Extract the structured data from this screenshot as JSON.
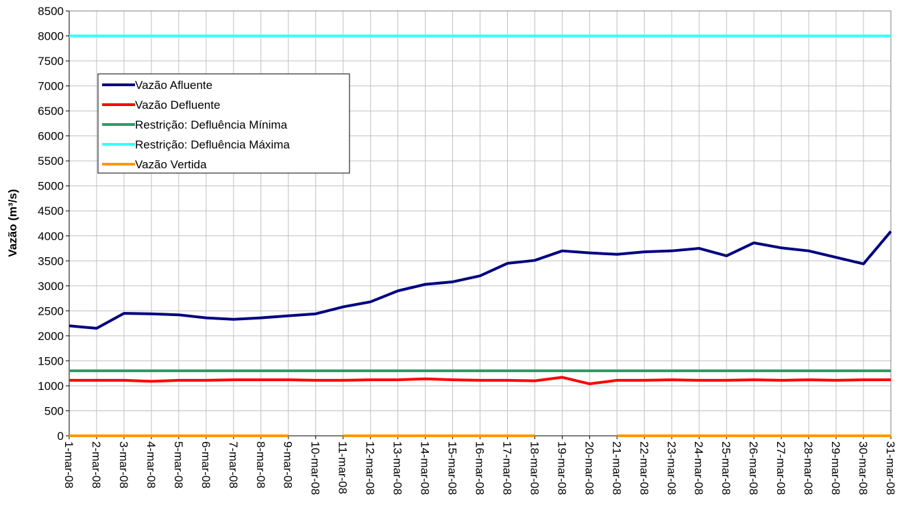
{
  "chart_data": {
    "type": "line",
    "y_label": "Vazão (m³/s)",
    "categories": [
      "1-mar-08",
      "2-mar-08",
      "3-mar-08",
      "4-mar-08",
      "5-mar-08",
      "6-mar-08",
      "7-mar-08",
      "8-mar-08",
      "9-mar-08",
      "10-mar-08",
      "11-mar-08",
      "12-mar-08",
      "13-mar-08",
      "14-mar-08",
      "15-mar-08",
      "16-mar-08",
      "17-mar-08",
      "18-mar-08",
      "19-mar-08",
      "20-mar-08",
      "21-mar-08",
      "22-mar-08",
      "23-mar-08",
      "24-mar-08",
      "25-mar-08",
      "26-mar-08",
      "27-mar-08",
      "28-mar-08",
      "29-mar-08",
      "30-mar-08",
      "31-mar-08"
    ],
    "series": [
      {
        "name": "Vazão Afluente",
        "color": "#000080",
        "values": [
          2200,
          2150,
          2450,
          2440,
          2420,
          2360,
          2330,
          2360,
          2400,
          2440,
          2580,
          2680,
          2900,
          3030,
          3080,
          3200,
          3450,
          3510,
          3700,
          3660,
          3630,
          3680,
          3700,
          3750,
          3600,
          3860,
          3760,
          3700,
          3570,
          3440,
          4090
        ]
      },
      {
        "name": "Vazão Defluente",
        "color": "#ff0000",
        "values": [
          1110,
          1110,
          1110,
          1090,
          1110,
          1110,
          1120,
          1120,
          1120,
          1110,
          1110,
          1120,
          1120,
          1140,
          1120,
          1110,
          1110,
          1100,
          1170,
          1040,
          1110,
          1110,
          1120,
          1110,
          1110,
          1120,
          1110,
          1120,
          1110,
          1120,
          1120
        ]
      },
      {
        "name": "Restrição: Defluência Mínima",
        "color": "#339966",
        "values": [
          1300,
          1300,
          1300,
          1300,
          1300,
          1300,
          1300,
          1300,
          1300,
          1300,
          1300,
          1300,
          1300,
          1300,
          1300,
          1300,
          1300,
          1300,
          1300,
          1300,
          1300,
          1300,
          1300,
          1300,
          1300,
          1300,
          1300,
          1300,
          1300,
          1300,
          1300
        ]
      },
      {
        "name": "Restrição: Defluência Máxima",
        "color": "#33ffff",
        "values": [
          8000,
          8000,
          8000,
          8000,
          8000,
          8000,
          8000,
          8000,
          8000,
          8000,
          8000,
          8000,
          8000,
          8000,
          8000,
          8000,
          8000,
          8000,
          8000,
          8000,
          8000,
          8000,
          8000,
          8000,
          8000,
          8000,
          8000,
          8000,
          8000,
          8000,
          8000
        ]
      },
      {
        "name": "Vazão Vertida",
        "color": "#ff9900",
        "values": [
          0,
          0,
          0,
          0,
          0,
          0,
          0,
          0,
          0,
          null,
          0,
          0,
          0,
          0,
          0,
          0,
          0,
          0,
          null,
          null,
          0,
          0,
          0,
          0,
          0,
          0,
          0,
          0,
          0,
          0,
          0
        ]
      }
    ],
    "ylim": [
      0,
      8500
    ],
    "yticks": [
      0,
      500,
      1000,
      1500,
      2000,
      2500,
      3000,
      3500,
      4000,
      4500,
      5000,
      5500,
      6000,
      6500,
      7000,
      7500,
      8000,
      8500
    ],
    "grid": true,
    "legend": "upper left"
  }
}
